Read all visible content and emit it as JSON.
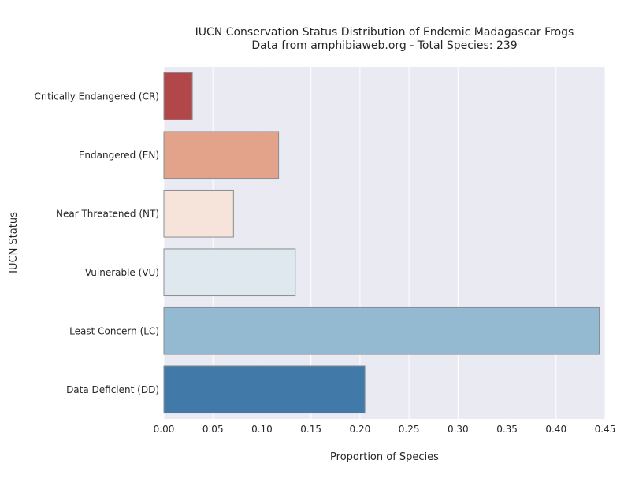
{
  "chart_data": {
    "type": "bar",
    "orientation": "horizontal",
    "title": "IUCN Conservation Status Distribution of Endemic Madagascar Frogs",
    "subtitle": "Data from amphibiaweb.org - Total Species: 239",
    "xlabel": "Proportion of Species",
    "ylabel": "IUCN Status",
    "categories": [
      "Critically Endangered (CR)",
      "Endangered (EN)",
      "Near Threatened (NT)",
      "Vulnerable (VU)",
      "Least Concern (LC)",
      "Data Deficient (DD)"
    ],
    "values": [
      0.029,
      0.117,
      0.071,
      0.134,
      0.444,
      0.205
    ],
    "colors": [
      "#b2474a",
      "#e3a28a",
      "#f6e3da",
      "#dfe7ef",
      "#93bad0",
      "#4179a8"
    ],
    "xlim": [
      0,
      0.45
    ],
    "xticks": [
      "0.00",
      "0.05",
      "0.10",
      "0.15",
      "0.20",
      "0.25",
      "0.30",
      "0.35",
      "0.40",
      "0.45"
    ],
    "xtick_values": [
      0,
      0.05,
      0.1,
      0.15,
      0.2,
      0.25,
      0.3,
      0.35,
      0.4,
      0.45
    ],
    "grid": true,
    "background": "#eaeaf2"
  }
}
